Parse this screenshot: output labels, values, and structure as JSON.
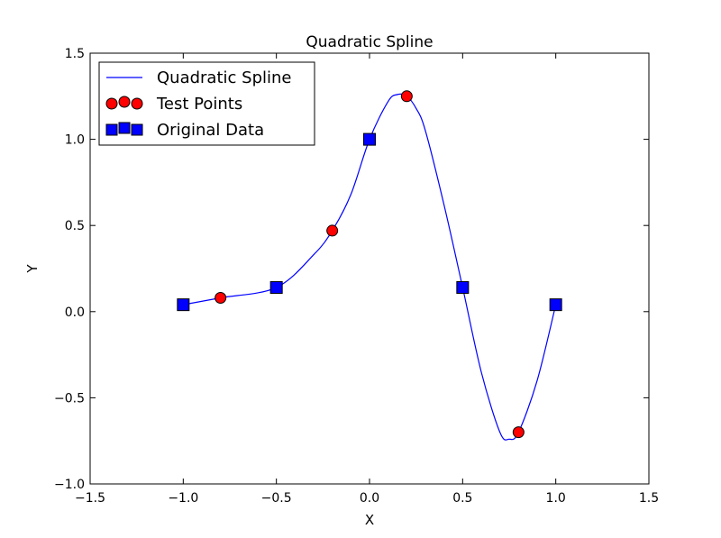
{
  "chart_data": {
    "type": "line",
    "title": "Quadratic Spline",
    "xlabel": "X",
    "ylabel": "Y",
    "xlim": [
      -1.5,
      1.5
    ],
    "ylim": [
      -1.0,
      1.5
    ],
    "xticks": [
      -1.5,
      -1.0,
      -0.5,
      0.0,
      0.5,
      1.0,
      1.5
    ],
    "xtick_labels": [
      "−1.5",
      "−1.0",
      "−0.5",
      "0.0",
      "0.5",
      "1.0",
      "1.5"
    ],
    "yticks": [
      -1.0,
      -0.5,
      0.0,
      0.5,
      1.0,
      1.5
    ],
    "ytick_labels": [
      "−1.0",
      "−0.5",
      "0.0",
      "0.5",
      "1.0",
      "1.5"
    ],
    "grid": false,
    "legend_position": "top-left",
    "series": [
      {
        "name": "Quadratic Spline",
        "kind": "line",
        "color": "#0000ff",
        "x": [
          -1.0,
          -0.8,
          -0.5,
          -0.3,
          -0.2,
          -0.1,
          0.0,
          0.1,
          0.15,
          0.2,
          0.25,
          0.3,
          0.4,
          0.5,
          0.6,
          0.7,
          0.75,
          0.8,
          0.9,
          1.0
        ],
        "y": [
          0.04,
          0.08,
          0.14,
          0.33,
          0.47,
          0.68,
          1.0,
          1.22,
          1.26,
          1.25,
          1.18,
          1.05,
          0.62,
          0.14,
          -0.35,
          -0.7,
          -0.74,
          -0.7,
          -0.4,
          0.04
        ]
      },
      {
        "name": "Test Points",
        "kind": "scatter",
        "marker": "circle",
        "color": "#ff0000",
        "x": [
          -0.8,
          -0.2,
          0.2,
          0.8
        ],
        "y": [
          0.08,
          0.47,
          1.25,
          -0.7
        ]
      },
      {
        "name": "Original Data",
        "kind": "scatter",
        "marker": "square",
        "color": "#0000ff",
        "x": [
          -1.0,
          -0.5,
          0.0,
          0.5,
          1.0
        ],
        "y": [
          0.04,
          0.14,
          1.0,
          0.14,
          0.04
        ]
      }
    ]
  }
}
